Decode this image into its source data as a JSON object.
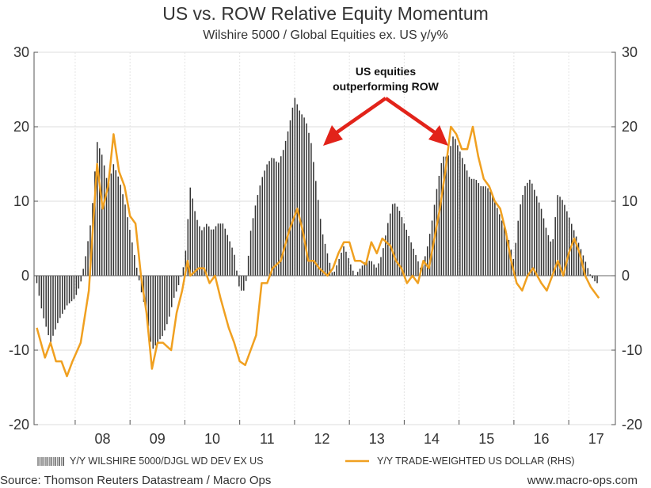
{
  "chart_data": {
    "type": "bar+line",
    "title": "US vs. ROW Relative Equity Momentum",
    "subtitle": "Wilshire 5000 / Global Equities ex. US y/y%",
    "ylim": [
      -20,
      30
    ],
    "y2lim": [
      -20,
      30
    ],
    "yticks": [
      "30",
      "20",
      "10",
      "0",
      "-10",
      "-20"
    ],
    "y2ticks": [
      "30",
      "20",
      "10",
      "0",
      "-10",
      "-20"
    ],
    "xtick_labels": [
      "08",
      "09",
      "10",
      "11",
      "12",
      "13",
      "14",
      "15",
      "16",
      "17"
    ],
    "xlim": [
      2007.25,
      2017.85
    ],
    "annotation": {
      "line1": "US equities",
      "line2": "outperforming ROW"
    },
    "series": [
      {
        "name": "Y/Y WILSHIRE 5000/DJGL WD DEV EX US",
        "kind": "bar",
        "color": "#333333",
        "points": [
          [
            2007.3,
            -1
          ],
          [
            2007.4,
            -5
          ],
          [
            2007.55,
            -9
          ],
          [
            2007.7,
            -6
          ],
          [
            2007.85,
            -4
          ],
          [
            2008.0,
            -3
          ],
          [
            2008.1,
            -1
          ],
          [
            2008.2,
            3
          ],
          [
            2008.3,
            8
          ],
          [
            2008.4,
            18
          ],
          [
            2008.5,
            16
          ],
          [
            2008.6,
            12
          ],
          [
            2008.7,
            15
          ],
          [
            2008.8,
            13
          ],
          [
            2008.9,
            10
          ],
          [
            2009.0,
            6
          ],
          [
            2009.1,
            2
          ],
          [
            2009.2,
            -2
          ],
          [
            2009.3,
            -5
          ],
          [
            2009.4,
            -10
          ],
          [
            2009.5,
            -9
          ],
          [
            2009.6,
            -8
          ],
          [
            2009.7,
            -6
          ],
          [
            2009.8,
            -3
          ],
          [
            2009.9,
            -1
          ],
          [
            2010.0,
            2
          ],
          [
            2010.1,
            12
          ],
          [
            2010.2,
            8
          ],
          [
            2010.3,
            6
          ],
          [
            2010.4,
            7
          ],
          [
            2010.5,
            6
          ],
          [
            2010.6,
            7
          ],
          [
            2010.7,
            7
          ],
          [
            2010.8,
            5
          ],
          [
            2010.9,
            3
          ],
          [
            2011.0,
            -2
          ],
          [
            2011.1,
            -2
          ],
          [
            2011.2,
            6
          ],
          [
            2011.3,
            10
          ],
          [
            2011.4,
            13
          ],
          [
            2011.5,
            15
          ],
          [
            2011.6,
            16
          ],
          [
            2011.7,
            15
          ],
          [
            2011.8,
            17
          ],
          [
            2011.9,
            20
          ],
          [
            2012.0,
            24
          ],
          [
            2012.1,
            22
          ],
          [
            2012.2,
            21
          ],
          [
            2012.3,
            18
          ],
          [
            2012.4,
            12
          ],
          [
            2012.5,
            6
          ],
          [
            2012.6,
            3
          ],
          [
            2012.7,
            0
          ],
          [
            2012.8,
            2
          ],
          [
            2012.9,
            4
          ],
          [
            2013.0,
            2
          ],
          [
            2013.1,
            0
          ],
          [
            2013.2,
            1
          ],
          [
            2013.3,
            2
          ],
          [
            2013.4,
            2
          ],
          [
            2013.5,
            1
          ],
          [
            2013.6,
            3
          ],
          [
            2013.7,
            7
          ],
          [
            2013.8,
            10
          ],
          [
            2013.9,
            9
          ],
          [
            2014.0,
            7
          ],
          [
            2014.1,
            5
          ],
          [
            2014.2,
            3
          ],
          [
            2014.3,
            1
          ],
          [
            2014.4,
            3
          ],
          [
            2014.5,
            7
          ],
          [
            2014.6,
            12
          ],
          [
            2014.7,
            16
          ],
          [
            2014.8,
            16
          ],
          [
            2014.9,
            19
          ],
          [
            2015.0,
            17
          ],
          [
            2015.1,
            15
          ],
          [
            2015.2,
            13
          ],
          [
            2015.3,
            13
          ],
          [
            2015.4,
            12
          ],
          [
            2015.5,
            12
          ],
          [
            2015.6,
            11
          ],
          [
            2015.7,
            9
          ],
          [
            2015.8,
            7
          ],
          [
            2015.9,
            5
          ],
          [
            2016.0,
            2
          ],
          [
            2016.1,
            9
          ],
          [
            2016.2,
            12
          ],
          [
            2016.3,
            13
          ],
          [
            2016.4,
            11
          ],
          [
            2016.5,
            9
          ],
          [
            2016.6,
            6
          ],
          [
            2016.7,
            4
          ],
          [
            2016.8,
            11
          ],
          [
            2016.9,
            10
          ],
          [
            2017.0,
            8
          ],
          [
            2017.1,
            6
          ],
          [
            2017.2,
            4
          ],
          [
            2017.3,
            2
          ],
          [
            2017.4,
            0
          ],
          [
            2017.5,
            -1
          ],
          [
            2017.55,
            -1
          ]
        ]
      },
      {
        "name": "Y/Y TRADE-WEIGHTED US DOLLAR (RHS)",
        "kind": "line",
        "color": "#f0a020",
        "points": [
          [
            2007.3,
            -7
          ],
          [
            2007.45,
            -11
          ],
          [
            2007.55,
            -9
          ],
          [
            2007.65,
            -11.5
          ],
          [
            2007.75,
            -11.5
          ],
          [
            2007.85,
            -13.5
          ],
          [
            2007.95,
            -11.5
          ],
          [
            2008.1,
            -9
          ],
          [
            2008.25,
            -2
          ],
          [
            2008.4,
            15
          ],
          [
            2008.5,
            9
          ],
          [
            2008.6,
            12
          ],
          [
            2008.7,
            19
          ],
          [
            2008.8,
            14
          ],
          [
            2008.9,
            12
          ],
          [
            2009.0,
            8
          ],
          [
            2009.1,
            7
          ],
          [
            2009.2,
            0
          ],
          [
            2009.3,
            -5
          ],
          [
            2009.4,
            -12.5
          ],
          [
            2009.5,
            -9
          ],
          [
            2009.6,
            -9
          ],
          [
            2009.75,
            -10
          ],
          [
            2009.85,
            -5
          ],
          [
            2009.95,
            -2
          ],
          [
            2010.05,
            2
          ],
          [
            2010.1,
            0
          ],
          [
            2010.25,
            1
          ],
          [
            2010.35,
            1
          ],
          [
            2010.45,
            -1
          ],
          [
            2010.55,
            0
          ],
          [
            2010.65,
            -3
          ],
          [
            2010.8,
            -7
          ],
          [
            2010.9,
            -9
          ],
          [
            2011.0,
            -11.5
          ],
          [
            2011.1,
            -12
          ],
          [
            2011.2,
            -10
          ],
          [
            2011.3,
            -8
          ],
          [
            2011.4,
            -1
          ],
          [
            2011.5,
            -1
          ],
          [
            2011.6,
            1
          ],
          [
            2011.75,
            2
          ],
          [
            2011.9,
            6
          ],
          [
            2012.05,
            9
          ],
          [
            2012.15,
            6
          ],
          [
            2012.25,
            2
          ],
          [
            2012.35,
            2
          ],
          [
            2012.45,
            1
          ],
          [
            2012.6,
            0
          ],
          [
            2012.7,
            1
          ],
          [
            2012.8,
            3
          ],
          [
            2012.9,
            4.5
          ],
          [
            2013.0,
            4.5
          ],
          [
            2013.1,
            2
          ],
          [
            2013.2,
            2
          ],
          [
            2013.3,
            1.5
          ],
          [
            2013.4,
            4.5
          ],
          [
            2013.5,
            3
          ],
          [
            2013.6,
            5
          ],
          [
            2013.75,
            4
          ],
          [
            2013.85,
            2
          ],
          [
            2013.95,
            1
          ],
          [
            2014.05,
            -1
          ],
          [
            2014.15,
            0
          ],
          [
            2014.25,
            -1
          ],
          [
            2014.35,
            2
          ],
          [
            2014.45,
            1
          ],
          [
            2014.55,
            5
          ],
          [
            2014.65,
            9
          ],
          [
            2014.75,
            14
          ],
          [
            2014.85,
            20
          ],
          [
            2014.95,
            19
          ],
          [
            2015.05,
            17
          ],
          [
            2015.15,
            17
          ],
          [
            2015.25,
            20
          ],
          [
            2015.35,
            16
          ],
          [
            2015.45,
            13
          ],
          [
            2015.55,
            12
          ],
          [
            2015.65,
            10
          ],
          [
            2015.75,
            9
          ],
          [
            2015.85,
            6
          ],
          [
            2015.95,
            2
          ],
          [
            2016.05,
            -1
          ],
          [
            2016.15,
            -2
          ],
          [
            2016.25,
            0
          ],
          [
            2016.35,
            1
          ],
          [
            2016.5,
            -1
          ],
          [
            2016.6,
            -2
          ],
          [
            2016.7,
            0
          ],
          [
            2016.8,
            2
          ],
          [
            2016.9,
            0
          ],
          [
            2017.0,
            3
          ],
          [
            2017.1,
            5
          ],
          [
            2017.2,
            3
          ],
          [
            2017.3,
            0
          ],
          [
            2017.4,
            -1.5
          ],
          [
            2017.55,
            -3
          ]
        ]
      }
    ],
    "legend_position": "bottom"
  },
  "footer": {
    "source": "Source: Thomson Reuters Datastream / Macro Ops",
    "website": "www.macro-ops.com"
  }
}
